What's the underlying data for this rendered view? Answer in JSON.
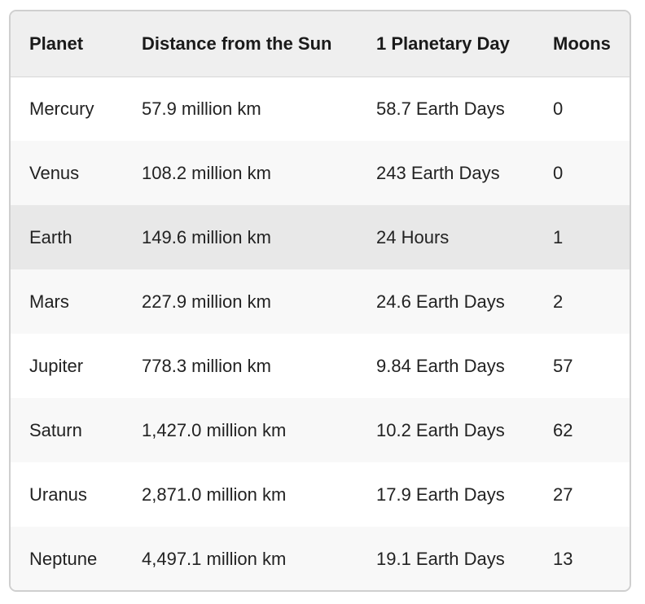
{
  "table": {
    "headers": [
      "Planet",
      "Distance from the Sun",
      "1 Planetary Day",
      "Moons"
    ],
    "rows": [
      {
        "planet": "Mercury",
        "distance": "57.9 million km",
        "day": "58.7 Earth Days",
        "moons": "0"
      },
      {
        "planet": "Venus",
        "distance": "108.2 million km",
        "day": "243 Earth Days",
        "moons": "0"
      },
      {
        "planet": "Earth",
        "distance": "149.6 million km",
        "day": "24 Hours",
        "moons": "1"
      },
      {
        "planet": "Mars",
        "distance": "227.9 million km",
        "day": "24.6 Earth Days",
        "moons": "2"
      },
      {
        "planet": "Jupiter",
        "distance": "778.3 million km",
        "day": "9.84 Earth Days",
        "moons": "57"
      },
      {
        "planet": "Saturn",
        "distance": "1,427.0 million km",
        "day": "10.2 Earth Days",
        "moons": "62"
      },
      {
        "planet": "Uranus",
        "distance": "2,871.0 million km",
        "day": "17.9 Earth Days",
        "moons": "27"
      },
      {
        "planet": "Neptune",
        "distance": "4,497.1 million km",
        "day": "19.1 Earth Days",
        "moons": "13"
      }
    ],
    "highlighted_row": "Earth"
  },
  "colors": {
    "header_bg": "#efefef",
    "row_odd_bg": "#ffffff",
    "row_even_bg": "#f8f8f8",
    "row_highlight_bg": "#e8e8e8",
    "border": "#cfcfcf"
  }
}
